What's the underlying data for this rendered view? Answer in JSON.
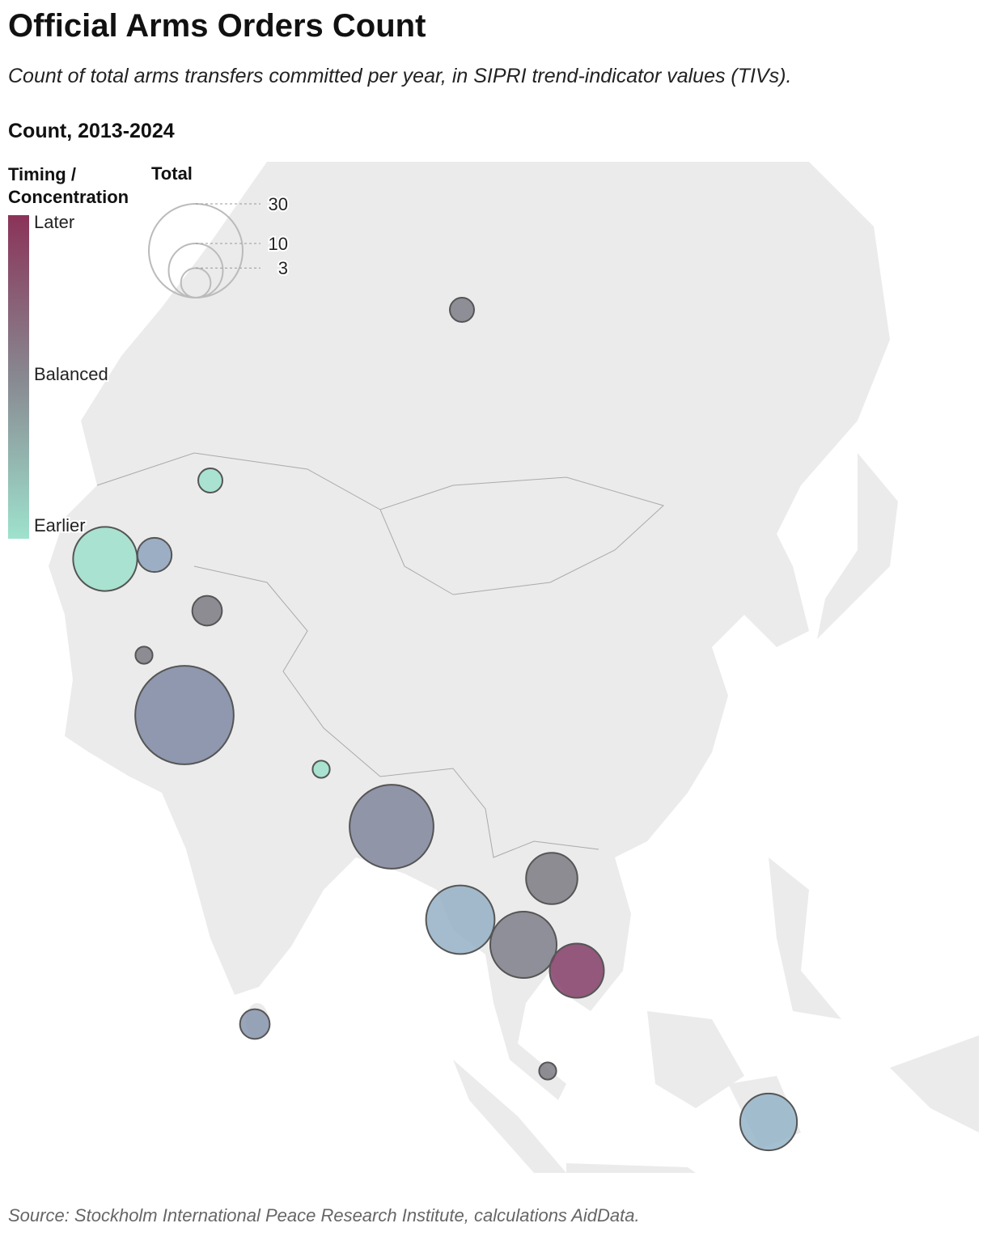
{
  "header": {
    "title": "Official Arms Orders Count",
    "subtitle": "Count of total arms transfers committed per year, in SIPRI trend-indicator values (TIVs)."
  },
  "chart_data": {
    "type": "bubble-map",
    "title": "Count, 2013-2024",
    "color_legend": {
      "title": "Timing / Concentration",
      "labels": [
        "Later",
        "Balanced",
        "Earlier"
      ],
      "colors": [
        "#8a3358",
        "#888890",
        "#9ee2cd"
      ]
    },
    "size_legend": {
      "title": "Total",
      "values": [
        30,
        10,
        3
      ]
    },
    "bubbles": [
      {
        "total": 2,
        "color": "#7e7e88"
      },
      {
        "total": 2,
        "color": "#9ee0cb"
      },
      {
        "total": 14,
        "color": "#9ee0cb"
      },
      {
        "total": 4,
        "color": "#8ea3bd"
      },
      {
        "total": 3,
        "color": "#7c7b84"
      },
      {
        "total": 1,
        "color": "#7c7b84"
      },
      {
        "total": 33,
        "color": "#7f8aa3"
      },
      {
        "total": 1,
        "color": "#9ee0cb"
      },
      {
        "total": 24,
        "color": "#80869b"
      },
      {
        "total": 9,
        "color": "#7c7b84"
      },
      {
        "total": 16,
        "color": "#94b0c6"
      },
      {
        "total": 15,
        "color": "#7f7f8b"
      },
      {
        "total": 10,
        "color": "#843e67"
      },
      {
        "total": 3,
        "color": "#8795ad"
      },
      {
        "total": 1,
        "color": "#7c7b84"
      },
      {
        "total": 11,
        "color": "#94b4c8"
      }
    ]
  },
  "source": "Source: Stockholm International Peace Research Institute, calculations AidData."
}
